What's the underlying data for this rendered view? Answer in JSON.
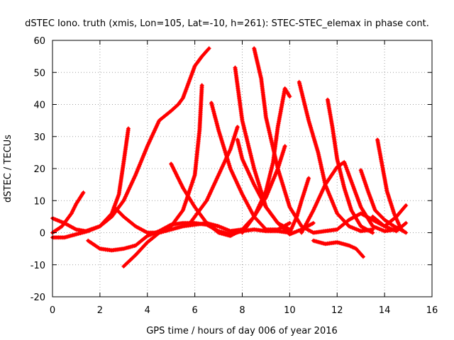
{
  "chart_data": {
    "type": "scatter",
    "title": "dSTEC Iono. truth (xmis, Lon=105, Lat=-10, h=261): STEC-STEC_elemax in phase cont.",
    "xlabel": "GPS time / hours of day 006 of year 2016",
    "ylabel": "dSTEC  / TECUs",
    "xlim": [
      0,
      16
    ],
    "ylim": [
      -20,
      60
    ],
    "xticks": [
      0,
      2,
      4,
      6,
      8,
      10,
      12,
      14,
      16
    ],
    "yticks": [
      -20,
      -10,
      0,
      10,
      20,
      30,
      40,
      50,
      60
    ],
    "grid": true,
    "marker": "plus",
    "color": "#ff0000",
    "series": [
      {
        "points": [
          [
            0,
            0
          ],
          [
            0.4,
            2
          ],
          [
            0.8,
            6
          ],
          [
            1.0,
            9
          ],
          [
            1.3,
            12.5
          ]
        ]
      },
      {
        "points": [
          [
            0,
            4.5
          ],
          [
            0.5,
            3
          ],
          [
            1.0,
            1
          ],
          [
            1.4,
            0.5
          ],
          [
            2.0,
            2
          ],
          [
            2.5,
            5
          ],
          [
            3.0,
            10
          ],
          [
            3.5,
            18
          ],
          [
            4.0,
            27
          ],
          [
            4.5,
            35
          ],
          [
            5.0,
            38
          ],
          [
            5.3,
            40
          ],
          [
            5.5,
            42
          ],
          [
            6.0,
            52
          ],
          [
            6.3,
            55
          ],
          [
            6.6,
            57.5
          ]
        ]
      },
      {
        "points": [
          [
            0,
            -1.5
          ],
          [
            0.5,
            -1.5
          ],
          [
            1.0,
            -0.5
          ],
          [
            1.5,
            0.5
          ],
          [
            2.0,
            2
          ],
          [
            2.5,
            6
          ],
          [
            2.8,
            12
          ],
          [
            3.0,
            22
          ],
          [
            3.2,
            32.5
          ]
        ]
      },
      {
        "points": [
          [
            1.5,
            -2.5
          ],
          [
            2.0,
            -5
          ],
          [
            2.5,
            -5.5
          ],
          [
            3.0,
            -5
          ],
          [
            3.5,
            -4
          ],
          [
            4.0,
            -1
          ],
          [
            4.5,
            0.5
          ],
          [
            5.0,
            2.5
          ],
          [
            5.5,
            3
          ],
          [
            6.0,
            3
          ],
          [
            6.5,
            2.5
          ],
          [
            7.0,
            0.5
          ],
          [
            7.5,
            -0.5
          ],
          [
            8.0,
            0.5
          ],
          [
            8.5,
            1
          ],
          [
            9.0,
            0.5
          ],
          [
            9.5,
            0.5
          ],
          [
            10.0,
            0
          ]
        ]
      },
      {
        "points": [
          [
            2.6,
            8
          ],
          [
            3.0,
            5
          ],
          [
            3.5,
            2
          ],
          [
            4.0,
            0
          ],
          [
            4.5,
            0
          ],
          [
            5.0,
            1
          ],
          [
            5.5,
            2
          ],
          [
            6.0,
            2.5
          ],
          [
            6.5,
            3
          ],
          [
            7.0,
            2
          ],
          [
            7.5,
            0.5
          ],
          [
            8.0,
            1
          ]
        ]
      },
      {
        "points": [
          [
            3.0,
            -10.5
          ],
          [
            3.5,
            -7
          ],
          [
            4.0,
            -3
          ],
          [
            4.5,
            0
          ],
          [
            5.0,
            2
          ],
          [
            5.5,
            7
          ],
          [
            6.0,
            18
          ],
          [
            6.2,
            32
          ],
          [
            6.3,
            46
          ]
        ]
      },
      {
        "points": [
          [
            5.0,
            21.5
          ],
          [
            5.5,
            14
          ],
          [
            6.0,
            8
          ],
          [
            6.5,
            3
          ],
          [
            7.0,
            0
          ],
          [
            7.5,
            -1
          ],
          [
            8.0,
            1
          ],
          [
            8.5,
            5
          ],
          [
            9.0,
            13
          ],
          [
            9.3,
            22
          ],
          [
            9.5,
            33
          ],
          [
            9.8,
            45
          ],
          [
            10.0,
            42.5
          ]
        ]
      },
      {
        "points": [
          [
            5.8,
            3
          ],
          [
            6.5,
            10
          ],
          [
            7.0,
            18
          ],
          [
            7.5,
            26
          ],
          [
            7.8,
            33
          ]
        ]
      },
      {
        "points": [
          [
            6.7,
            40.5
          ],
          [
            7.0,
            32
          ],
          [
            7.5,
            20
          ],
          [
            8.0,
            12
          ],
          [
            8.5,
            5
          ],
          [
            9.0,
            1
          ],
          [
            9.5,
            1
          ],
          [
            10.0,
            3
          ]
        ]
      },
      {
        "points": [
          [
            7.7,
            51.5
          ],
          [
            8.0,
            35
          ],
          [
            8.5,
            20
          ],
          [
            9.0,
            8
          ],
          [
            9.5,
            3
          ],
          [
            10.0,
            -0.5
          ],
          [
            10.5,
            1
          ],
          [
            11.0,
            3
          ]
        ]
      },
      {
        "points": [
          [
            7.8,
            29
          ],
          [
            8.0,
            23
          ],
          [
            8.5,
            15
          ],
          [
            9.0,
            8
          ],
          [
            9.5,
            3
          ],
          [
            10.0,
            1
          ]
        ]
      },
      {
        "points": [
          [
            8.5,
            57.5
          ],
          [
            8.8,
            48
          ],
          [
            9.0,
            36
          ],
          [
            9.5,
            20
          ],
          [
            10.0,
            8
          ],
          [
            10.5,
            2
          ],
          [
            11.0,
            0
          ],
          [
            11.5,
            0.5
          ],
          [
            12.0,
            1
          ]
        ]
      },
      {
        "points": [
          [
            8.0,
            0
          ],
          [
            8.5,
            5
          ],
          [
            9.0,
            11
          ],
          [
            9.5,
            20
          ],
          [
            9.8,
            27
          ]
        ]
      },
      {
        "points": [
          [
            10.4,
            47
          ],
          [
            10.8,
            35
          ],
          [
            11.2,
            25
          ],
          [
            11.5,
            15
          ],
          [
            12.0,
            6
          ],
          [
            12.5,
            2
          ],
          [
            13.0,
            0.5
          ],
          [
            13.5,
            1
          ]
        ]
      },
      {
        "points": [
          [
            10.0,
            0
          ],
          [
            10.3,
            5
          ],
          [
            10.5,
            10
          ],
          [
            10.8,
            17
          ]
        ]
      },
      {
        "points": [
          [
            10.5,
            0
          ],
          [
            11.0,
            7
          ],
          [
            11.5,
            15
          ],
          [
            12.0,
            20.5
          ],
          [
            12.3,
            22
          ],
          [
            12.5,
            18
          ],
          [
            13.0,
            8
          ],
          [
            13.5,
            2
          ],
          [
            14.0,
            0.5
          ],
          [
            14.5,
            1
          ]
        ]
      },
      {
        "points": [
          [
            11.6,
            41.5
          ],
          [
            11.8,
            33
          ],
          [
            12.0,
            23
          ],
          [
            12.3,
            14
          ],
          [
            12.6,
            7
          ],
          [
            13.0,
            2
          ],
          [
            13.5,
            0
          ]
        ]
      },
      {
        "points": [
          [
            11.0,
            -2.5
          ],
          [
            11.5,
            -3.5
          ],
          [
            12.0,
            -3
          ],
          [
            12.5,
            -4
          ],
          [
            12.8,
            -5
          ],
          [
            13.1,
            -7.5
          ]
        ]
      },
      {
        "points": [
          [
            13.0,
            19.5
          ],
          [
            13.3,
            13
          ],
          [
            13.6,
            7
          ],
          [
            14.0,
            4
          ],
          [
            14.4,
            2
          ],
          [
            14.8,
            0.5
          ]
        ]
      },
      {
        "points": [
          [
            13.7,
            29
          ],
          [
            13.9,
            21
          ],
          [
            14.1,
            13
          ],
          [
            14.4,
            6
          ],
          [
            14.7,
            1
          ],
          [
            14.9,
            0
          ]
        ]
      },
      {
        "points": [
          [
            12.0,
            1
          ],
          [
            12.5,
            4
          ],
          [
            13.0,
            6
          ],
          [
            13.5,
            4
          ],
          [
            14.0,
            2
          ],
          [
            14.5,
            5
          ],
          [
            14.9,
            8.5
          ]
        ]
      },
      {
        "points": [
          [
            13.5,
            5
          ],
          [
            14.0,
            2
          ],
          [
            14.5,
            0.5
          ],
          [
            14.9,
            3
          ]
        ]
      }
    ]
  }
}
